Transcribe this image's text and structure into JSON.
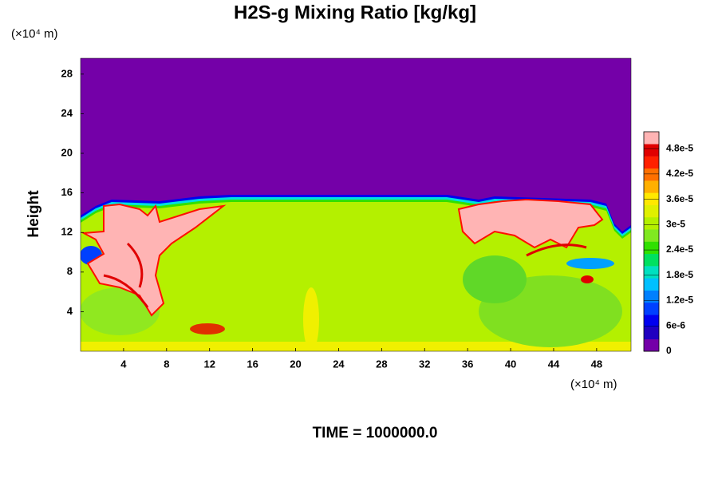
{
  "chart_data": {
    "type": "contour",
    "title": "H2S-g Mixing Ratio [kg/kg]",
    "ylabel": "Height",
    "x_unit": "(×10⁴ m)",
    "y_unit": "(×10⁴ m)",
    "time_label": "TIME = 1000000.0",
    "xlim": [
      0,
      51.2
    ],
    "xticks": [
      4,
      8,
      12,
      16,
      20,
      24,
      28,
      32,
      36,
      40,
      44,
      48
    ],
    "ylim": [
      0,
      29.6
    ],
    "yticks": [
      4,
      8,
      12,
      16,
      20,
      24,
      28
    ],
    "colorbar": {
      "clim": [
        0,
        5.2e-05
      ],
      "ticks": [
        0,
        {
          "value": 6e-06,
          "label": "6e-6"
        },
        {
          "value": 1.2e-05,
          "label": "1.2e-5"
        },
        {
          "value": 1.8e-05,
          "label": "1.8e-5"
        },
        {
          "value": 2.4e-05,
          "label": "2.4e-5"
        },
        {
          "value": 3e-05,
          "label": "3e-5"
        },
        {
          "value": 3.6e-05,
          "label": "3.6e-5"
        },
        {
          "value": 4.2e-05,
          "label": "4.2e-5"
        },
        {
          "value": 4.8e-05,
          "label": "4.8e-5"
        }
      ],
      "colors": [
        "#7400a8",
        "#2000c0",
        "#0000f0",
        "#0040ff",
        "#0080ff",
        "#00c0ff",
        "#00e0c0",
        "#00e060",
        "#30e000",
        "#80e820",
        "#b4f000",
        "#e0f000",
        "#ffe800",
        "#ffb000",
        "#ff7000",
        "#ff2000",
        "#e00000",
        "#ffb4b4"
      ]
    }
  }
}
